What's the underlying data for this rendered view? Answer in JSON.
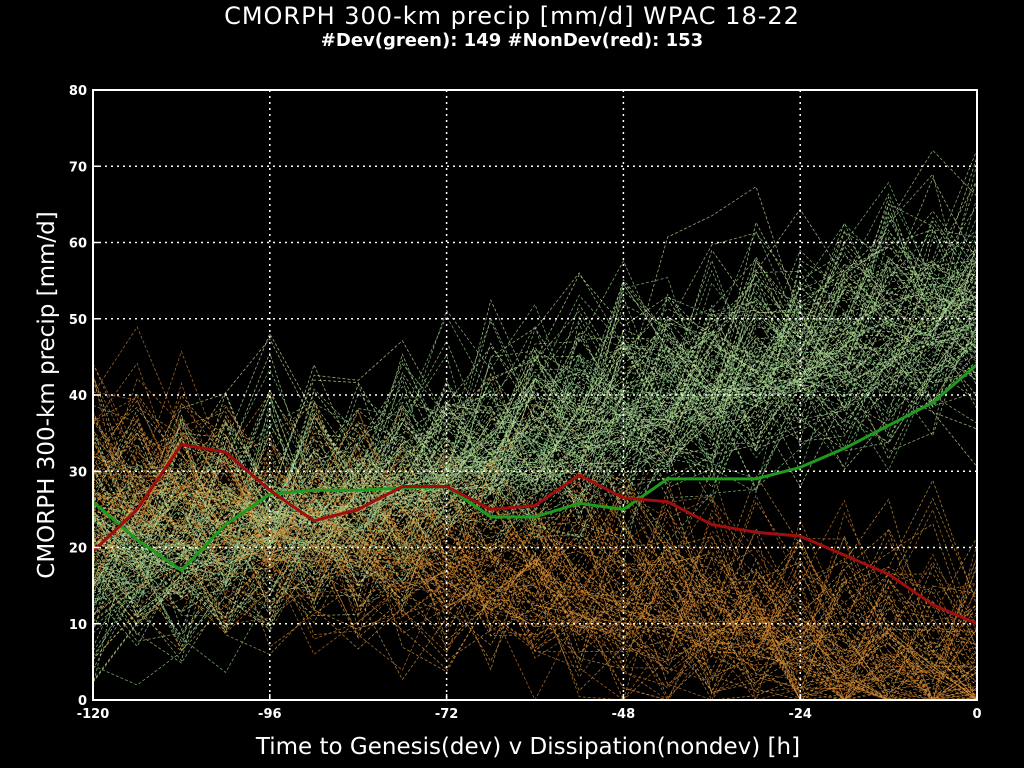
{
  "chart_data": {
    "type": "line",
    "title": "CMORPH 300-km precip [mm/d] WPAC 18-22",
    "subtitle": "#Dev(green): 149 #NonDev(red): 153",
    "xlabel": "Time to Genesis(dev) v Dissipation(nondev) [h]",
    "ylabel": "CMORPH 300-km precip [mm/d]",
    "xlim": [
      -120,
      0
    ],
    "ylim": [
      0,
      80
    ],
    "xticks": [
      -120,
      -96,
      -72,
      -48,
      -24,
      0
    ],
    "yticks": [
      0,
      10,
      20,
      30,
      40,
      50,
      60,
      70,
      80
    ],
    "grid": true,
    "x": [
      -120,
      -114,
      -108,
      -102,
      -96,
      -90,
      -84,
      -78,
      -72,
      -66,
      -60,
      -54,
      -48,
      -42,
      -36,
      -30,
      -24,
      -18,
      -12,
      -6,
      0
    ],
    "series": [
      {
        "name": "Dev",
        "color": "#1f9a1f",
        "values": [
          26.0,
          21.0,
          17.0,
          23.0,
          27.0,
          27.5,
          27.5,
          27.8,
          28.0,
          24.0,
          24.0,
          25.8,
          25.0,
          29.0,
          29.0,
          29.0,
          30.5,
          33.0,
          36.0,
          39.0,
          44.0
        ]
      },
      {
        "name": "NonDev",
        "color": "#a00f0f",
        "values": [
          19.5,
          25.0,
          33.5,
          32.5,
          27.5,
          23.5,
          25.0,
          28.0,
          28.0,
          25.0,
          25.5,
          29.5,
          26.5,
          26.0,
          23.0,
          22.0,
          21.5,
          19.0,
          16.5,
          12.5,
          10.0
        ]
      }
    ],
    "spaghetti_member_colors": [
      "#8fd08f",
      "#c8e6a0",
      "#e0a040",
      "#d08030",
      "#b0d890"
    ]
  }
}
